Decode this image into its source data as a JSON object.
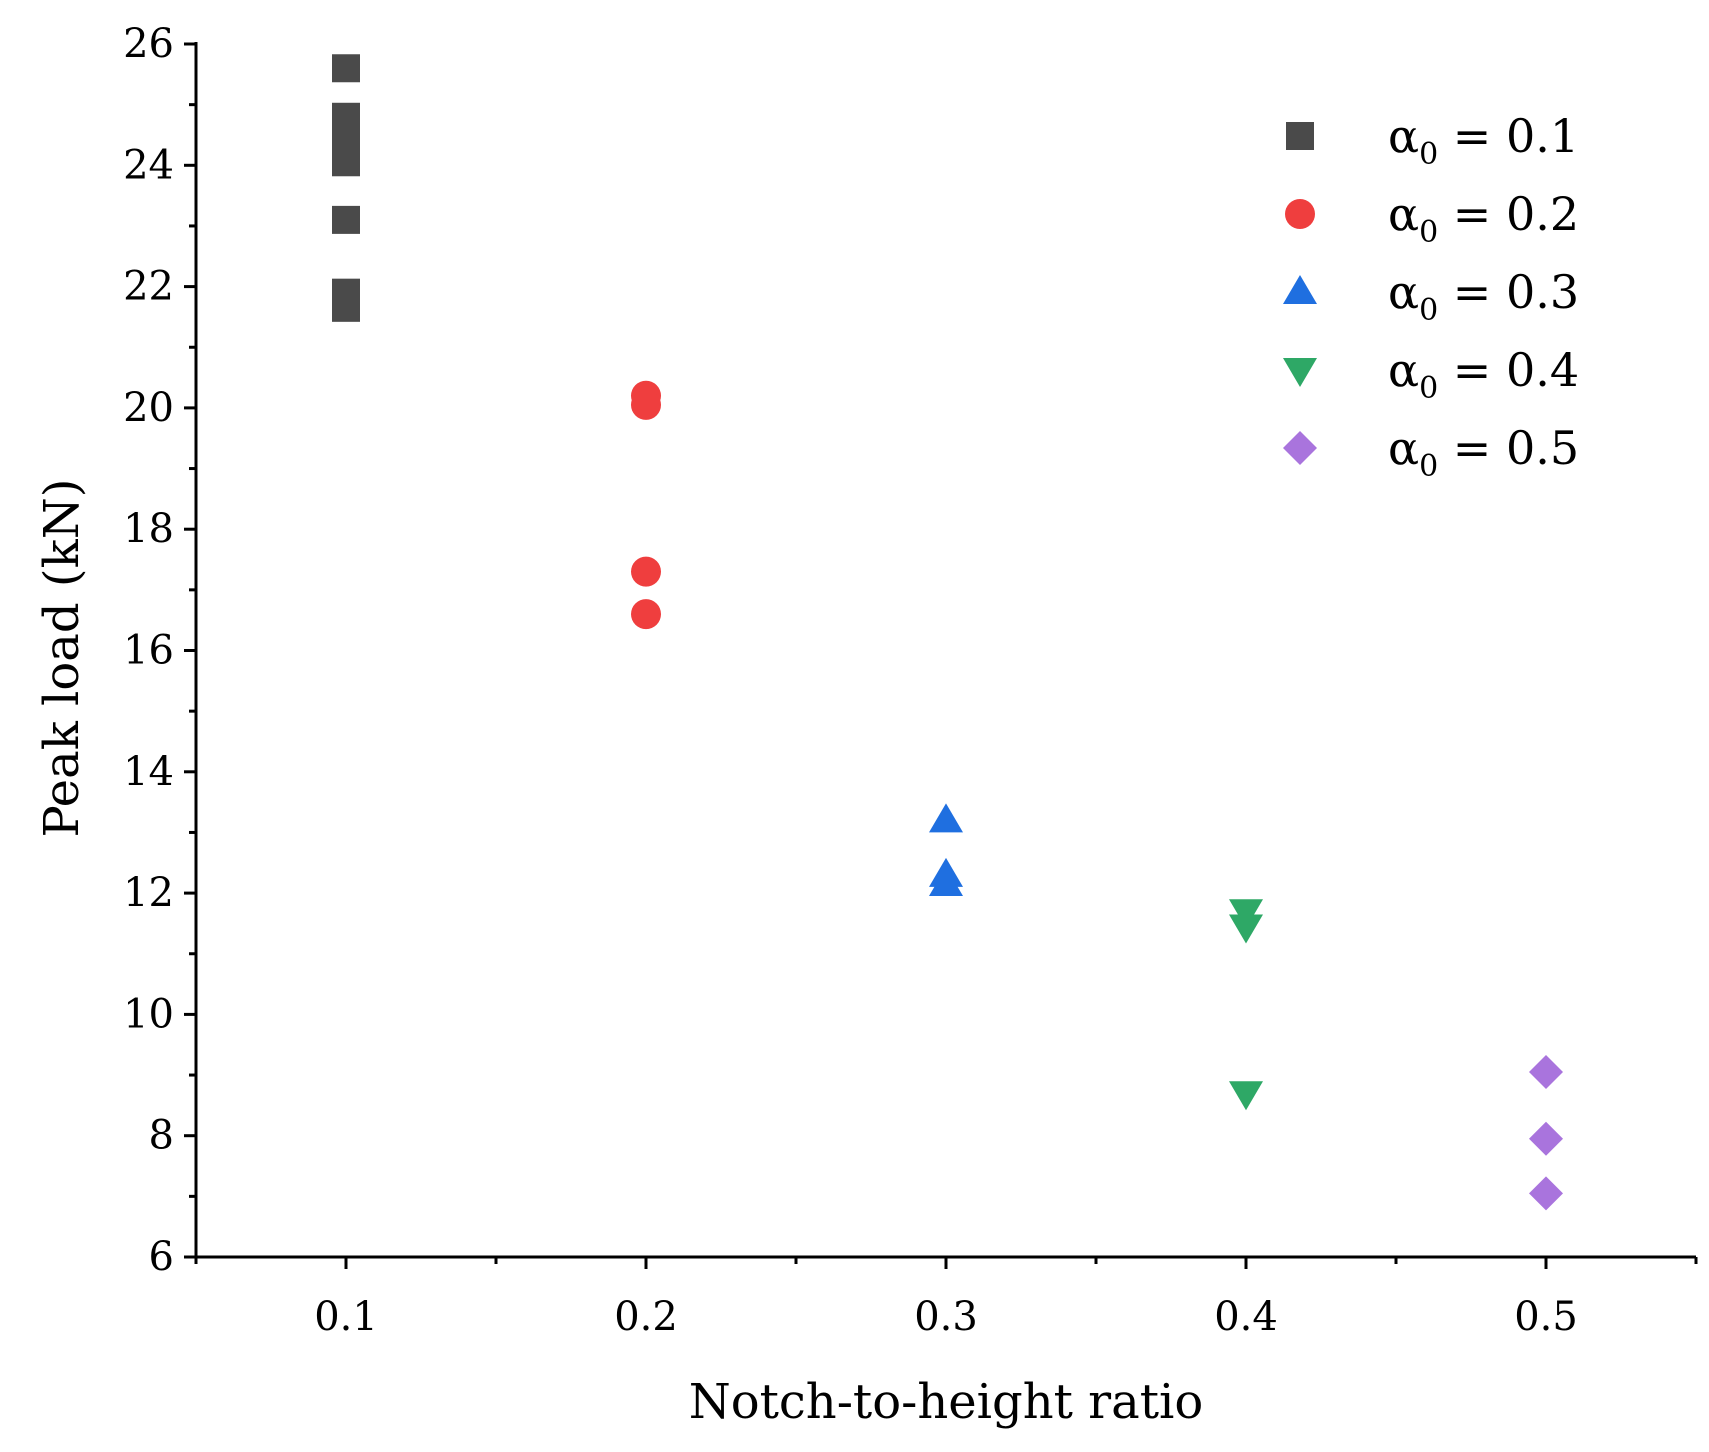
{
  "chart_data": {
    "type": "scatter",
    "title": "",
    "xlabel": "Notch-to-height ratio",
    "ylabel": "Peak load (kN)",
    "xlim": [
      0.05,
      0.55
    ],
    "ylim": [
      6,
      26
    ],
    "x_ticks": [
      "0.1",
      "0.2",
      "0.3",
      "0.4",
      "0.5"
    ],
    "y_ticks": [
      "6",
      "8",
      "10",
      "12",
      "14",
      "16",
      "18",
      "20",
      "22",
      "24",
      "26"
    ],
    "grid": false,
    "legend_position": "top-right",
    "series": [
      {
        "name": "α0 = 0.1",
        "label": {
          "symbol": "α",
          "sub": "0",
          "text": " = 0.1"
        },
        "marker": "square",
        "color": "#4a4a4a",
        "points": [
          [
            0.1,
            25.6
          ],
          [
            0.1,
            24.8
          ],
          [
            0.1,
            24.35
          ],
          [
            0.1,
            24.05
          ],
          [
            0.1,
            23.1
          ],
          [
            0.1,
            21.9
          ],
          [
            0.1,
            21.65
          ]
        ]
      },
      {
        "name": "α0 = 0.2",
        "label": {
          "symbol": "α",
          "sub": "0",
          "text": " = 0.2"
        },
        "marker": "circle",
        "color": "#ef3e3e",
        "points": [
          [
            0.2,
            20.2
          ],
          [
            0.2,
            20.05
          ],
          [
            0.2,
            17.3
          ],
          [
            0.2,
            16.6
          ]
        ]
      },
      {
        "name": "α0 = 0.3",
        "label": {
          "symbol": "α",
          "sub": "0",
          "text": " = 0.3"
        },
        "marker": "triangle-up",
        "color": "#1f6fe0",
        "points": [
          [
            0.3,
            13.2
          ],
          [
            0.3,
            12.3
          ],
          [
            0.3,
            12.15
          ]
        ]
      },
      {
        "name": "α0 = 0.4",
        "label": {
          "symbol": "α",
          "sub": "0",
          "text": " = 0.4"
        },
        "marker": "triangle-down",
        "color": "#2ea866",
        "points": [
          [
            0.4,
            11.7
          ],
          [
            0.4,
            11.45
          ],
          [
            0.4,
            8.7
          ]
        ]
      },
      {
        "name": "α0 = 0.5",
        "label": {
          "symbol": "α",
          "sub": "0",
          "text": " = 0.5"
        },
        "marker": "diamond",
        "color": "#a974dd",
        "points": [
          [
            0.5,
            9.05
          ],
          [
            0.5,
            7.95
          ],
          [
            0.5,
            7.05
          ]
        ]
      }
    ]
  }
}
